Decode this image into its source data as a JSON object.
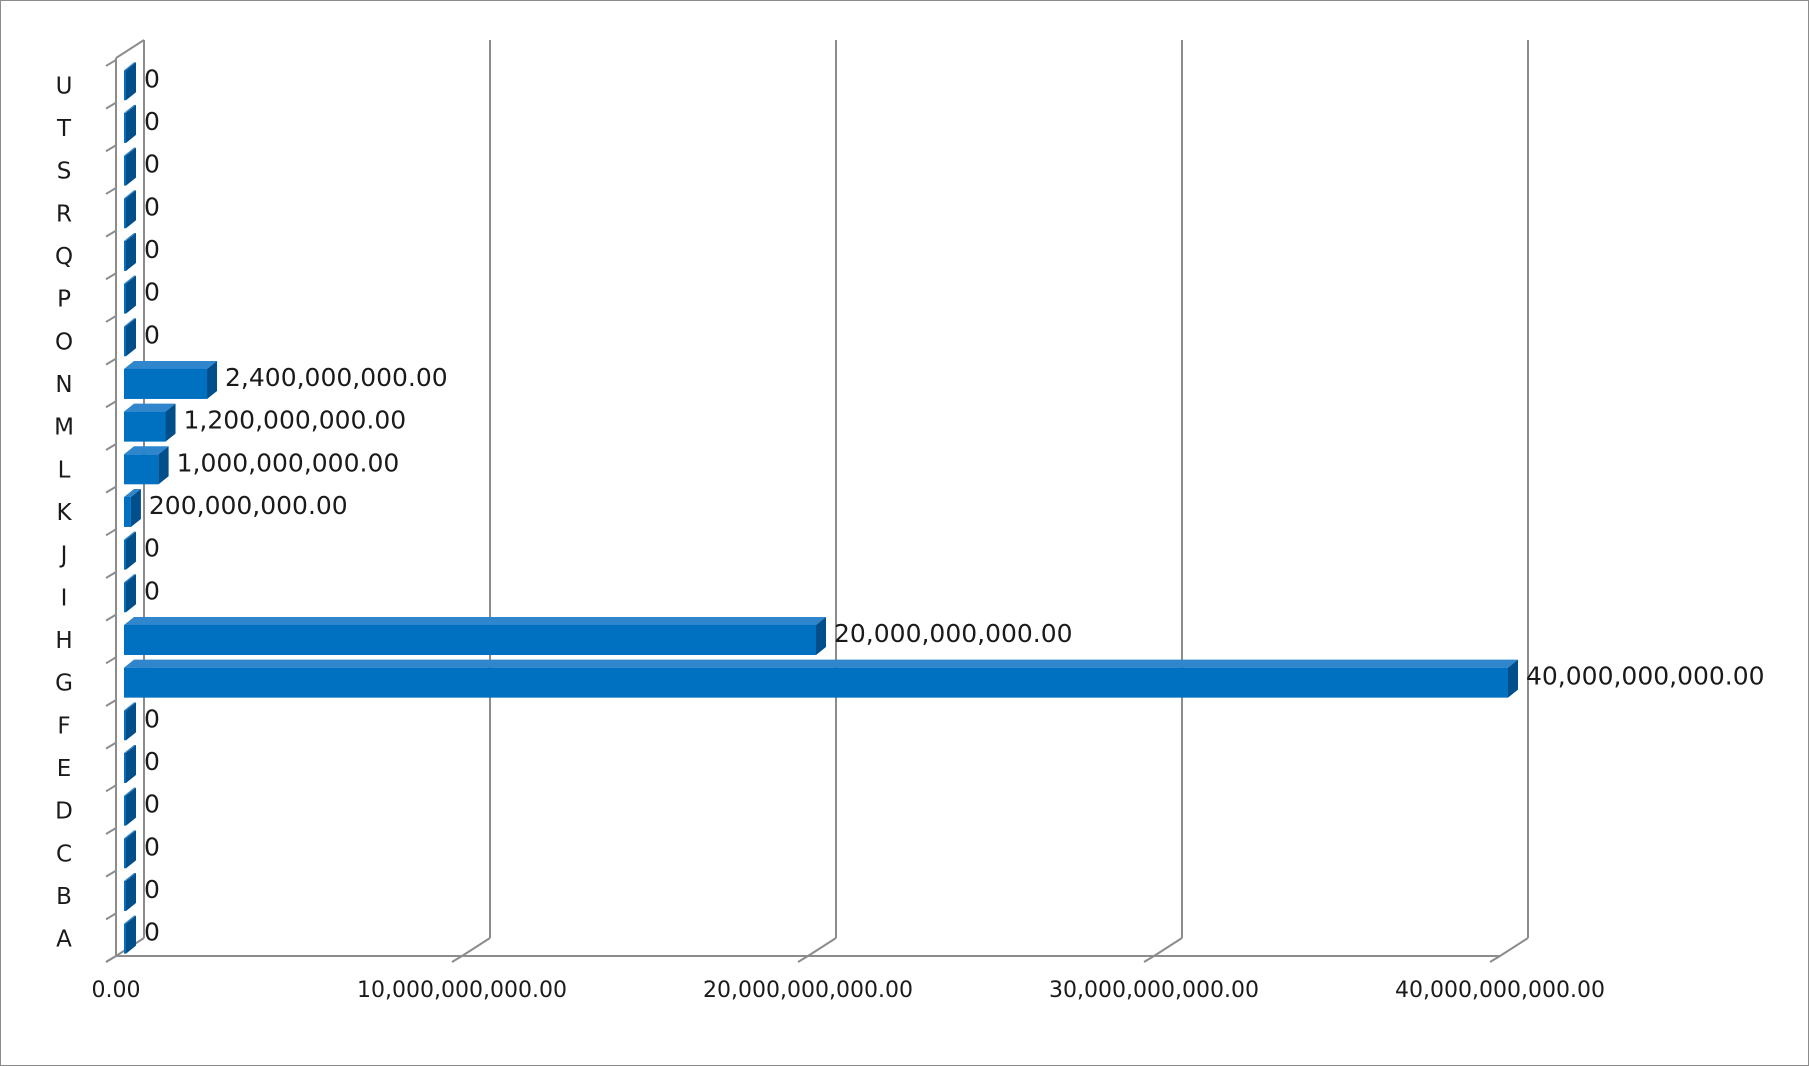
{
  "chart_data": {
    "type": "bar",
    "orientation": "horizontal",
    "style": "3d",
    "title": "",
    "xlabel": "",
    "ylabel": "",
    "categories": [
      "A",
      "B",
      "C",
      "D",
      "E",
      "F",
      "G",
      "H",
      "I",
      "J",
      "K",
      "L",
      "M",
      "N",
      "O",
      "P",
      "Q",
      "R",
      "S",
      "T",
      "U"
    ],
    "values": [
      0,
      0,
      0,
      0,
      0,
      0,
      40000000000,
      20000000000,
      0,
      0,
      200000000,
      1000000000,
      1200000000,
      2400000000,
      0,
      0,
      0,
      0,
      0,
      0,
      0
    ],
    "data_labels": [
      "0",
      "0",
      "0",
      "0",
      "0",
      "0",
      "40,000,000,000.00",
      "20,000,000,000.00",
      "0",
      "0",
      "200,000,000.00",
      "1,000,000,000.00",
      "1,200,000,000.00",
      "2,400,000,000.00",
      "0",
      "0",
      "0",
      "0",
      "0",
      "0",
      "0"
    ],
    "xlim": [
      0,
      40000000000
    ],
    "x_ticks": [
      0,
      10000000000,
      20000000000,
      30000000000,
      40000000000
    ],
    "x_tick_labels": [
      "0.00",
      "10,000,000,000.00",
      "20,000,000,000.00",
      "30,000,000,000.00",
      "40,000,000,000.00"
    ],
    "grid": true,
    "legend": "none",
    "bar_color": "#0070c0",
    "bar_side_color": "#004e8a",
    "bar_top_color": "#2f86cc",
    "grid_color": "#8c8c8c"
  }
}
